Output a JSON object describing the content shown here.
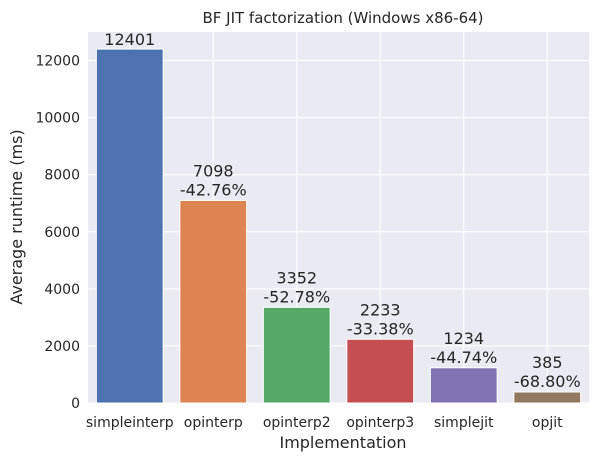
{
  "chart_data": {
    "type": "bar",
    "title": "BF JIT factorization (Windows x86-64)",
    "xlabel": "Implementation",
    "ylabel": "Average runtime (ms)",
    "ylim": [
      0,
      13000
    ],
    "yticks": [
      0,
      2000,
      4000,
      6000,
      8000,
      10000,
      12000
    ],
    "grid": true,
    "categories": [
      "simpleinterp",
      "opinterp",
      "opinterp2",
      "opinterp3",
      "simplejit",
      "opjit"
    ],
    "values": [
      12401,
      7098,
      3352,
      2233,
      1234,
      385
    ],
    "value_labels": [
      "12401",
      "7098",
      "3352",
      "2233",
      "1234",
      "385"
    ],
    "change_labels": [
      "",
      "-42.76%",
      "-52.78%",
      "-33.38%",
      "-44.74%",
      "-68.80%"
    ],
    "colors": [
      "#4c72b0",
      "#dd8452",
      "#55a868",
      "#c44e52",
      "#8172b3",
      "#937860"
    ],
    "plot_background": "#eaeaf2",
    "grid_color": "#ffffff"
  }
}
